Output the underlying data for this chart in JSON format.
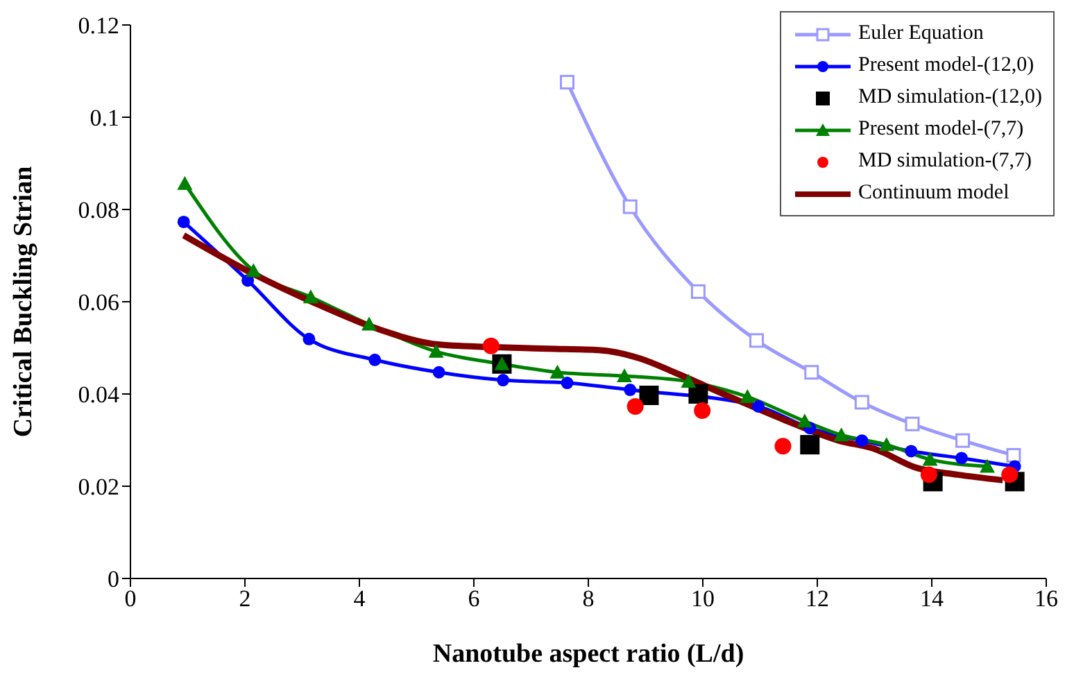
{
  "chart_data": {
    "type": "line",
    "xlabel": "Nanotube aspect ratio (L/d)",
    "ylabel": "Critical Buckling Strian",
    "xlim": [
      0,
      16
    ],
    "xticks": [
      0,
      2,
      4,
      6,
      8,
      10,
      12,
      14,
      16
    ],
    "ylim": [
      0,
      0.12
    ],
    "yticks": [
      0,
      0.02,
      0.04,
      0.06,
      0.08,
      0.1,
      0.12
    ],
    "grid": false,
    "legend": "top right",
    "line_style": "solid",
    "series": [
      {
        "name": "Euler Equation",
        "marker": "square",
        "color": "#9999ff",
        "x": [
          7.63,
          8.73,
          9.92,
          10.94,
          11.9,
          12.78,
          13.66,
          14.54,
          15.43
        ],
        "values": [
          0.1076,
          0.0806,
          0.0622,
          0.0516,
          0.0447,
          0.0382,
          0.0335,
          0.0299,
          0.0267
        ]
      },
      {
        "name": "Present model-(12,0)",
        "marker": "circle",
        "color": "#0000ff",
        "x": [
          0.93,
          2.05,
          3.12,
          4.27,
          5.39,
          6.51,
          7.63,
          8.73,
          9.92,
          10.97,
          11.87,
          12.78,
          13.64,
          14.52,
          15.45
        ],
        "values": [
          0.0773,
          0.0646,
          0.0519,
          0.0474,
          0.0447,
          0.043,
          0.0424,
          0.0409,
          null,
          0.0373,
          0.0326,
          0.0299,
          0.0276,
          0.0261,
          0.0243
        ]
      },
      {
        "name": "MD simulation-(12,0)",
        "type": "scatter",
        "marker": "square",
        "color": "#000000",
        "x": [
          6.49,
          9.06,
          9.92,
          11.87,
          14.02,
          15.45
        ],
        "values": [
          0.0465,
          0.0397,
          0.04,
          0.029,
          0.021,
          0.021
        ]
      },
      {
        "name": "Present model-(7,7)",
        "marker": "triangle",
        "color": "#008000",
        "x": [
          0.95,
          2.15,
          3.15,
          4.17,
          5.34,
          6.49,
          7.46,
          8.63,
          9.75,
          10.78,
          11.78,
          12.42,
          13.21,
          13.97,
          14.97
        ],
        "values": [
          0.0856,
          0.0667,
          0.061,
          0.0551,
          0.0492,
          0.0465,
          0.0447,
          0.0439,
          0.0427,
          0.0394,
          0.0341,
          0.0311,
          0.029,
          0.0258,
          0.0243
        ]
      },
      {
        "name": "MD simulation-(7,7)",
        "type": "scatter",
        "marker": "circle",
        "color": "#ff0000",
        "x": [
          6.3,
          8.82,
          9.99,
          11.4,
          13.95,
          15.36
        ],
        "values": [
          0.0504,
          0.0373,
          0.0364,
          0.0287,
          0.0225,
          0.0225
        ]
      },
      {
        "name": "Continuum model",
        "marker": "none",
        "color": "#800000",
        "x": [
          0.93,
          2.15,
          3.24,
          4.3,
          5.39,
          6.46,
          7.3,
          8.18,
          8.9,
          9.5,
          10.47,
          11.42,
          12.37,
          13.0,
          13.73,
          14.45,
          15.24
        ],
        "values": [
          0.0744,
          0.066,
          0.0596,
          0.0542,
          0.0507,
          0.0501,
          0.0498,
          0.0495,
          0.0477,
          0.0447,
          0.0394,
          0.0344,
          0.0299,
          0.0281,
          0.024,
          0.0225,
          0.0213
        ]
      }
    ]
  }
}
